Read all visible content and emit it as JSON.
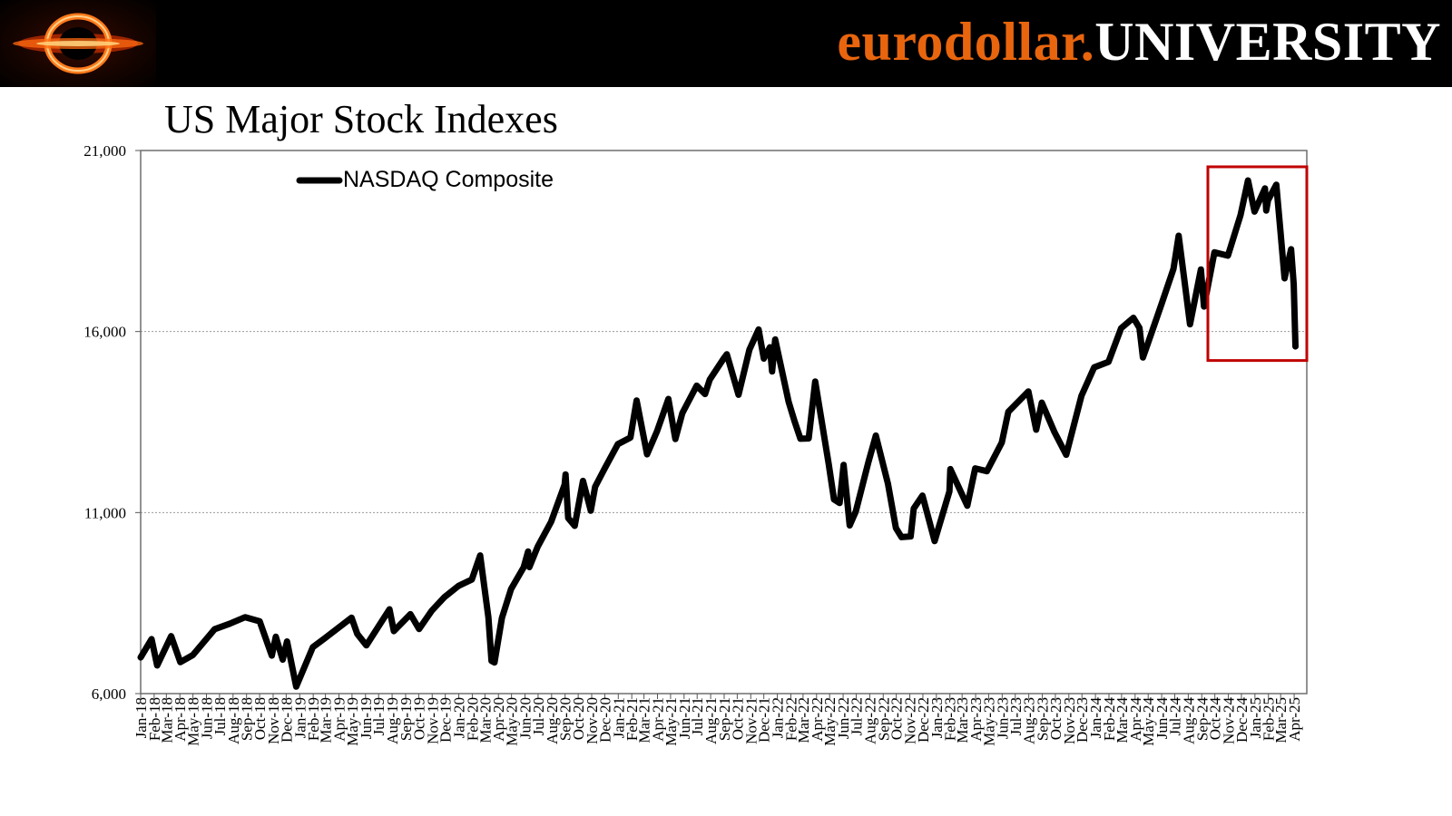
{
  "header": {
    "brand_accent": "eurodollar.",
    "brand_main": "UNIVERSITY",
    "accent_color": "#e8650e",
    "logo_icon": "black-hole-logo-icon"
  },
  "chart_data": {
    "type": "line",
    "title": "US Major Stock Indexes",
    "xlabel": "",
    "ylabel": "",
    "ylim": [
      6000,
      21000
    ],
    "yticks": [
      6000,
      11000,
      16000,
      21000
    ],
    "ytick_labels": [
      "6,000",
      "11,000",
      "16,000",
      "21,000"
    ],
    "xlim": [
      "2018-01-01",
      "2025-04-30"
    ],
    "x_tick_labels": [
      "Jan-18",
      "Feb-18",
      "Mar-18",
      "Apr-18",
      "May-18",
      "Jun-18",
      "Jul-18",
      "Aug-18",
      "Sep-18",
      "Oct-18",
      "Nov-18",
      "Dec-18",
      "Jan-19",
      "Feb-19",
      "Mar-19",
      "Apr-19",
      "May-19",
      "Jun-19",
      "Jul-19",
      "Aug-19",
      "Sep-19",
      "Oct-19",
      "Nov-19",
      "Dec-19",
      "Jan-20",
      "Feb-20",
      "Mar-20",
      "Apr-20",
      "May-20",
      "Jun-20",
      "Jul-20",
      "Aug-20",
      "Sep-20",
      "Oct-20",
      "Nov-20",
      "Dec-20",
      "Jan-21",
      "Feb-21",
      "Mar-21",
      "Apr-21",
      "May-21",
      "Jun-21",
      "Jul-21",
      "Aug-21",
      "Sep-21",
      "Oct-21",
      "Nov-21",
      "Dec-21",
      "Jan-22",
      "Feb-22",
      "Mar-22",
      "Apr-22",
      "May-22",
      "Jun-22",
      "Jul-22",
      "Aug-22",
      "Sep-22",
      "Oct-22",
      "Nov-22",
      "Dec-22",
      "Jan-23",
      "Feb-23",
      "Mar-23",
      "Apr-23",
      "May-23",
      "Jun-23",
      "Jul-23",
      "Aug-23",
      "Sep-23",
      "Oct-23",
      "Nov-23",
      "Dec-23",
      "Jan-24",
      "Feb-24",
      "Mar-24",
      "Apr-24",
      "May-24",
      "Jun-24",
      "Jul-24",
      "Aug-24",
      "Sep-24",
      "Oct-24",
      "Nov-24",
      "Dec-24",
      "Jan-25",
      "Feb-25",
      "Mar-25",
      "Apr-25"
    ],
    "grid": true,
    "legend_position": "top-left",
    "series": [
      {
        "name": "NASDAQ Composite",
        "color": "#000000",
        "x": [
          "2018-01-01",
          "2018-01-26",
          "2018-02-08",
          "2018-03-12",
          "2018-04-02",
          "2018-05-01",
          "2018-06-20",
          "2018-07-25",
          "2018-08-29",
          "2018-10-01",
          "2018-10-29",
          "2018-11-07",
          "2018-11-23",
          "2018-12-03",
          "2018-12-24",
          "2019-01-31",
          "2019-02-28",
          "2019-04-30",
          "2019-05-13",
          "2019-06-03",
          "2019-07-26",
          "2019-08-05",
          "2019-09-12",
          "2019-10-02",
          "2019-10-31",
          "2019-11-29",
          "2019-12-31",
          "2020-01-31",
          "2020-02-19",
          "2020-03-09",
          "2020-03-16",
          "2020-03-23",
          "2020-04-09",
          "2020-04-30",
          "2020-05-29",
          "2020-06-08",
          "2020-06-11",
          "2020-06-30",
          "2020-07-31",
          "2020-08-31",
          "2020-09-02",
          "2020-09-08",
          "2020-09-23",
          "2020-10-12",
          "2020-10-30",
          "2020-11-09",
          "2020-11-30",
          "2020-12-31",
          "2021-01-29",
          "2021-02-12",
          "2021-03-08",
          "2021-03-31",
          "2021-04-26",
          "2021-05-12",
          "2021-05-28",
          "2021-06-30",
          "2021-07-19",
          "2021-07-30",
          "2021-08-31",
          "2021-09-07",
          "2021-10-04",
          "2021-10-29",
          "2021-11-19",
          "2021-12-01",
          "2021-12-15",
          "2021-12-20",
          "2021-12-27",
          "2022-01-27",
          "2022-02-09",
          "2022-02-23",
          "2022-03-14",
          "2022-03-29",
          "2022-04-29",
          "2022-05-11",
          "2022-05-24",
          "2022-06-02",
          "2022-06-16",
          "2022-06-30",
          "2022-07-29",
          "2022-08-15",
          "2022-09-12",
          "2022-09-30",
          "2022-10-13",
          "2022-11-03",
          "2022-11-10",
          "2022-11-30",
          "2022-12-28",
          "2023-01-31",
          "2023-02-02",
          "2023-03-13",
          "2023-03-31",
          "2023-04-27",
          "2023-05-31",
          "2023-06-15",
          "2023-07-31",
          "2023-08-18",
          "2023-08-31",
          "2023-09-29",
          "2023-10-26",
          "2023-11-30",
          "2023-12-29",
          "2024-01-31",
          "2024-02-29",
          "2024-03-28",
          "2024-04-11",
          "2024-04-19",
          "2024-04-30",
          "2024-05-31",
          "2024-06-28",
          "2024-07-10",
          "2024-07-24",
          "2024-08-05",
          "2024-08-30",
          "2024-09-06",
          "2024-09-30",
          "2024-10-31",
          "2024-11-29",
          "2024-12-16",
          "2024-12-31",
          "2025-01-24",
          "2025-01-27",
          "2025-01-31",
          "2025-02-19",
          "2025-02-28",
          "2025-03-10",
          "2025-03-25",
          "2025-03-31",
          "2025-04-04"
        ],
        "values": [
          7000,
          7505,
          6777,
          7588,
          6870,
          7066,
          7781,
          7932,
          8110,
          7999,
          7050,
          7570,
          6938,
          7441,
          6193,
          7282,
          7533,
          8095,
          7647,
          7333,
          8330,
          7726,
          8194,
          7785,
          8292,
          8665,
          8973,
          9151,
          9817,
          8100,
          6905,
          6860,
          8090,
          8890,
          9490,
          9925,
          9493,
          10059,
          10745,
          11775,
          12056,
          10848,
          10633,
          11876,
          11052,
          11713,
          12198,
          12888,
          13071,
          14095,
          12609,
          13247,
          14138,
          13031,
          13748,
          14504,
          14275,
          14673,
          15259,
          15374,
          14255,
          15498,
          16057,
          15254,
          15566,
          14898,
          15781,
          14060,
          13539,
          13038,
          13046,
          14619,
          12335,
          11364,
          11264,
          12317,
          10646,
          11028,
          12391,
          13128,
          11792,
          10575,
          10321,
          10342,
          11114,
          11468,
          10213,
          11585,
          12201,
          11189,
          12221,
          12142,
          12935,
          13782,
          14346,
          13290,
          14035,
          13219,
          12596,
          14226,
          15011,
          15164,
          16092,
          16379,
          16099,
          15282,
          15658,
          16735,
          17733,
          18647,
          17342,
          16200,
          17714,
          16690,
          18189,
          18095,
          19218,
          20173,
          19311,
          19954,
          19342,
          19627,
          20056,
          18847,
          17468,
          18272,
          17299,
          15588
        ]
      }
    ],
    "annotations": [
      {
        "type": "highlight-box",
        "color": "#c00000",
        "x_range": [
          "2024-09-15",
          "2025-04-30"
        ],
        "y_range": [
          15200,
          20550
        ]
      }
    ]
  }
}
